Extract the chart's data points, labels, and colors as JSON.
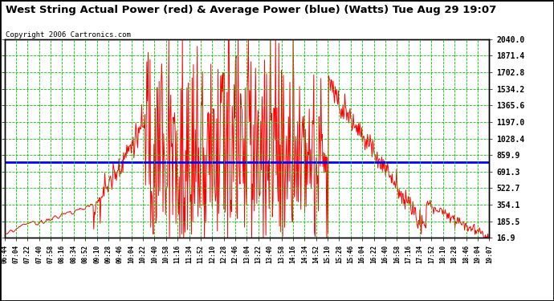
{
  "title": "West String Actual Power (red) & Average Power (blue) (Watts) Tue Aug 29 19:07",
  "copyright": "Copyright 2006 Cartronics.com",
  "bg_color": "#ffffff",
  "plot_bg_color": "#ffffff",
  "grid_color": "#00cc00",
  "text_color": "#000000",
  "title_color": "#000000",
  "red_color": "#ff0000",
  "blue_color": "#0000ff",
  "yticks": [
    2040.0,
    1871.4,
    1702.8,
    1534.2,
    1365.6,
    1197.0,
    1028.4,
    859.9,
    691.3,
    522.7,
    354.1,
    185.5,
    16.9
  ],
  "ymin": 16.9,
  "ymax": 2040.0,
  "average_power": 791.3,
  "xtick_labels": [
    "06:44",
    "07:04",
    "07:22",
    "07:40",
    "07:58",
    "08:16",
    "08:34",
    "08:52",
    "09:10",
    "09:28",
    "09:46",
    "10:04",
    "10:22",
    "10:40",
    "10:58",
    "11:16",
    "11:34",
    "11:52",
    "12:10",
    "12:28",
    "12:46",
    "13:04",
    "13:22",
    "13:40",
    "13:58",
    "14:16",
    "14:34",
    "14:52",
    "15:10",
    "15:28",
    "15:46",
    "16:04",
    "16:22",
    "16:40",
    "16:58",
    "17:16",
    "17:34",
    "17:52",
    "18:10",
    "18:28",
    "18:46",
    "19:04",
    "19:07"
  ]
}
